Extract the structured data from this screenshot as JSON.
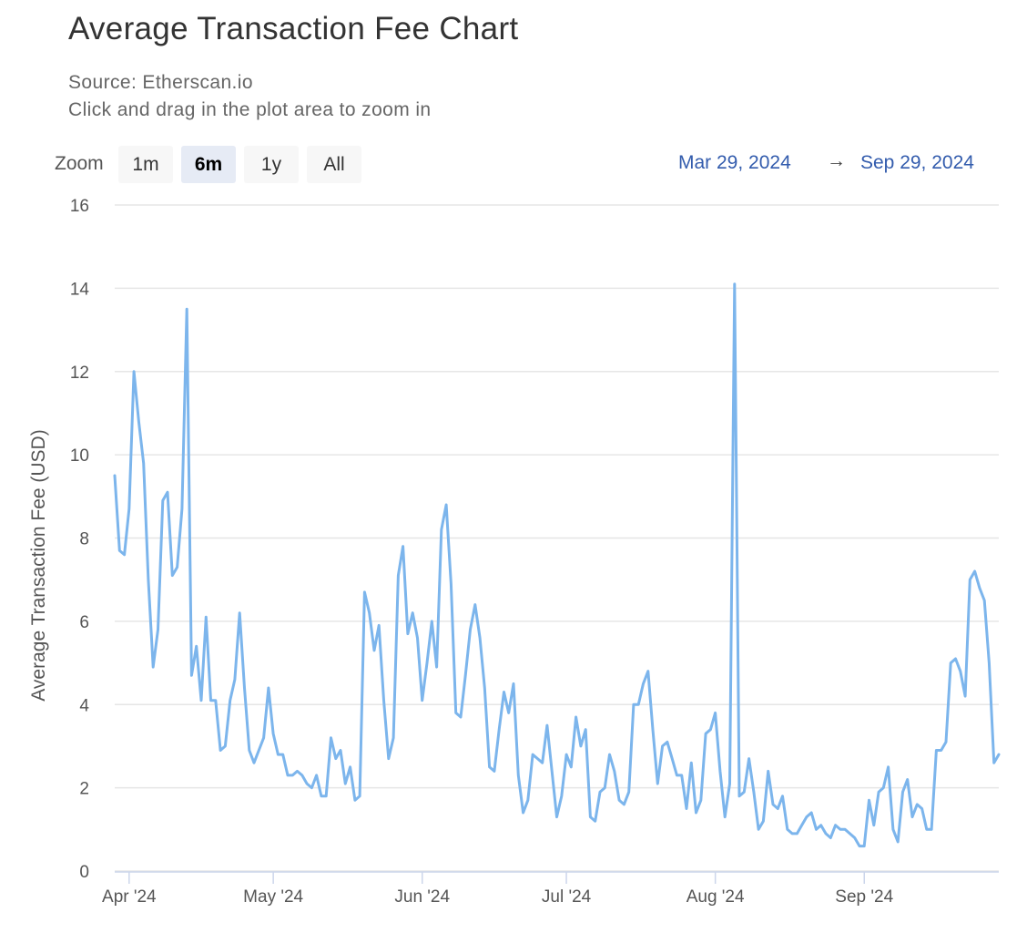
{
  "header": {
    "title": "Average Transaction Fee Chart",
    "source": "Source: Etherscan.io",
    "hint": "Click and drag in the plot area to zoom in"
  },
  "zoom": {
    "label": "Zoom",
    "buttons": [
      {
        "label": "1m",
        "active": false
      },
      {
        "label": "6m",
        "active": true
      },
      {
        "label": "1y",
        "active": false
      },
      {
        "label": "All",
        "active": false
      }
    ]
  },
  "range": {
    "from": "Mar 29, 2024",
    "arrow": "→",
    "to": "Sep 29, 2024"
  },
  "colors": {
    "series": "#7cb5ec",
    "grid": "#e6e6e6",
    "range_text": "#335cad"
  },
  "chart_data": {
    "type": "line",
    "title": "Average Transaction Fee Chart",
    "subtitle": "Source: Etherscan.io",
    "xlabel": "",
    "ylabel": "Average Transaction Fee (USD)",
    "x_range": [
      "2024-03-29",
      "2024-09-29"
    ],
    "ylim": [
      0,
      16
    ],
    "y_ticks": [
      0,
      2,
      4,
      6,
      8,
      10,
      12,
      14,
      16
    ],
    "x_ticks": [
      {
        "date": "2024-04-01",
        "label": "Apr '24"
      },
      {
        "date": "2024-05-01",
        "label": "May '24"
      },
      {
        "date": "2024-06-01",
        "label": "Jun '24"
      },
      {
        "date": "2024-07-01",
        "label": "Jul '24"
      },
      {
        "date": "2024-08-01",
        "label": "Aug '24"
      },
      {
        "date": "2024-09-01",
        "label": "Sep '24"
      }
    ],
    "grid": true,
    "legend": "none",
    "series": [
      {
        "x": [
          "2024-03-29",
          "2024-03-30",
          "2024-03-31",
          "2024-04-01",
          "2024-04-02",
          "2024-04-03",
          "2024-04-04",
          "2024-04-05",
          "2024-04-06",
          "2024-04-07",
          "2024-04-08",
          "2024-04-09",
          "2024-04-10",
          "2024-04-11",
          "2024-04-12",
          "2024-04-13",
          "2024-04-14",
          "2024-04-15",
          "2024-04-16",
          "2024-04-17",
          "2024-04-18",
          "2024-04-19",
          "2024-04-20",
          "2024-04-21",
          "2024-04-22",
          "2024-04-23",
          "2024-04-24",
          "2024-04-25",
          "2024-04-26",
          "2024-04-27",
          "2024-04-28",
          "2024-04-29",
          "2024-04-30",
          "2024-05-01",
          "2024-05-02",
          "2024-05-03",
          "2024-05-04",
          "2024-05-05",
          "2024-05-06",
          "2024-05-07",
          "2024-05-08",
          "2024-05-09",
          "2024-05-10",
          "2024-05-11",
          "2024-05-12",
          "2024-05-13",
          "2024-05-14",
          "2024-05-15",
          "2024-05-16",
          "2024-05-17",
          "2024-05-18",
          "2024-05-19",
          "2024-05-20",
          "2024-05-21",
          "2024-05-22",
          "2024-05-23",
          "2024-05-24",
          "2024-05-25",
          "2024-05-26",
          "2024-05-27",
          "2024-05-28",
          "2024-05-29",
          "2024-05-30",
          "2024-05-31",
          "2024-06-01",
          "2024-06-02",
          "2024-06-03",
          "2024-06-04",
          "2024-06-05",
          "2024-06-06",
          "2024-06-07",
          "2024-06-08",
          "2024-06-09",
          "2024-06-10",
          "2024-06-11",
          "2024-06-12",
          "2024-06-13",
          "2024-06-14",
          "2024-06-15",
          "2024-06-16",
          "2024-06-17",
          "2024-06-18",
          "2024-06-19",
          "2024-06-20",
          "2024-06-21",
          "2024-06-22",
          "2024-06-23",
          "2024-06-24",
          "2024-06-25",
          "2024-06-26",
          "2024-06-27",
          "2024-06-28",
          "2024-06-29",
          "2024-06-30",
          "2024-07-01",
          "2024-07-02",
          "2024-07-03",
          "2024-07-04",
          "2024-07-05",
          "2024-07-06",
          "2024-07-07",
          "2024-07-08",
          "2024-07-09",
          "2024-07-10",
          "2024-07-11",
          "2024-07-12",
          "2024-07-13",
          "2024-07-14",
          "2024-07-15",
          "2024-07-16",
          "2024-07-17",
          "2024-07-18",
          "2024-07-19",
          "2024-07-20",
          "2024-07-21",
          "2024-07-22",
          "2024-07-23",
          "2024-07-24",
          "2024-07-25",
          "2024-07-26",
          "2024-07-27",
          "2024-07-28",
          "2024-07-29",
          "2024-07-30",
          "2024-07-31",
          "2024-08-01",
          "2024-08-02",
          "2024-08-03",
          "2024-08-04",
          "2024-08-05",
          "2024-08-06",
          "2024-08-07",
          "2024-08-08",
          "2024-08-09",
          "2024-08-10",
          "2024-08-11",
          "2024-08-12",
          "2024-08-13",
          "2024-08-14",
          "2024-08-15",
          "2024-08-16",
          "2024-08-17",
          "2024-08-18",
          "2024-08-19",
          "2024-08-20",
          "2024-08-21",
          "2024-08-22",
          "2024-08-23",
          "2024-08-24",
          "2024-08-25",
          "2024-08-26",
          "2024-08-27",
          "2024-08-28",
          "2024-08-29",
          "2024-08-30",
          "2024-08-31",
          "2024-09-01",
          "2024-09-02",
          "2024-09-03",
          "2024-09-04",
          "2024-09-05",
          "2024-09-06",
          "2024-09-07",
          "2024-09-08",
          "2024-09-09",
          "2024-09-10",
          "2024-09-11",
          "2024-09-12",
          "2024-09-13",
          "2024-09-14",
          "2024-09-15",
          "2024-09-16",
          "2024-09-17",
          "2024-09-18",
          "2024-09-19",
          "2024-09-20",
          "2024-09-21",
          "2024-09-22",
          "2024-09-23",
          "2024-09-24",
          "2024-09-25",
          "2024-09-26",
          "2024-09-27",
          "2024-09-28",
          "2024-09-29"
        ],
        "y": [
          9.5,
          7.7,
          7.6,
          8.7,
          12.0,
          10.8,
          9.8,
          7.0,
          4.9,
          5.8,
          8.9,
          9.1,
          7.1,
          7.3,
          8.7,
          13.5,
          4.7,
          5.4,
          4.1,
          6.1,
          4.1,
          4.1,
          2.9,
          3.0,
          4.1,
          4.6,
          6.2,
          4.4,
          2.9,
          2.6,
          2.9,
          3.2,
          4.4,
          3.3,
          2.8,
          2.8,
          2.3,
          2.3,
          2.4,
          2.3,
          2.1,
          2.0,
          2.3,
          1.8,
          1.8,
          3.2,
          2.7,
          2.9,
          2.1,
          2.5,
          1.7,
          1.8,
          6.7,
          6.2,
          5.3,
          5.9,
          4.1,
          2.7,
          3.2,
          7.1,
          7.8,
          5.7,
          6.2,
          5.6,
          4.1,
          5.0,
          6.0,
          4.9,
          8.2,
          8.8,
          6.9,
          3.8,
          3.7,
          4.7,
          5.8,
          6.4,
          5.6,
          4.4,
          2.5,
          2.4,
          3.4,
          4.3,
          3.8,
          4.5,
          2.3,
          1.4,
          1.7,
          2.8,
          2.7,
          2.6,
          3.5,
          2.4,
          1.3,
          1.8,
          2.8,
          2.5,
          3.7,
          3.0,
          3.4,
          1.3,
          1.2,
          1.9,
          2.0,
          2.8,
          2.4,
          1.7,
          1.6,
          1.9,
          4.0,
          4.0,
          4.5,
          4.8,
          3.4,
          2.1,
          3.0,
          3.1,
          2.7,
          2.3,
          2.3,
          1.5,
          2.6,
          1.4,
          1.7,
          3.3,
          3.4,
          3.8,
          2.4,
          1.3,
          2.1,
          14.1,
          1.8,
          1.9,
          2.7,
          1.9,
          1.0,
          1.2,
          2.4,
          1.6,
          1.5,
          1.8,
          1.0,
          0.9,
          0.9,
          1.1,
          1.3,
          1.4,
          1.0,
          1.1,
          0.9,
          0.8,
          1.1,
          1.0,
          1.0,
          0.9,
          0.8,
          0.6,
          0.6,
          1.7,
          1.1,
          1.9,
          2.0,
          2.5,
          1.0,
          0.7,
          1.9,
          2.2,
          1.3,
          1.6,
          1.5,
          1.0,
          1.0,
          2.9,
          2.9,
          3.1,
          5.0,
          5.1,
          4.8,
          4.2,
          7.0,
          7.2,
          6.8,
          6.5,
          5.0,
          2.6,
          2.8
        ]
      }
    ]
  }
}
